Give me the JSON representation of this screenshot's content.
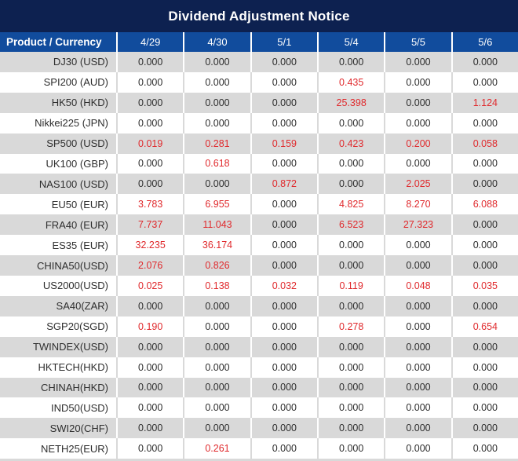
{
  "title": "Dividend Adjustment Notice",
  "table": {
    "product_header": "Product / Currency",
    "date_headers": [
      "4/29",
      "4/30",
      "5/1",
      "5/4",
      "5/5",
      "5/6"
    ],
    "rows": [
      {
        "product": "DJ30 (USD)",
        "values": [
          "0.000",
          "0.000",
          "0.000",
          "0.000",
          "0.000",
          "0.000"
        ]
      },
      {
        "product": "SPI200 (AUD)",
        "values": [
          "0.000",
          "0.000",
          "0.000",
          "0.435",
          "0.000",
          "0.000"
        ]
      },
      {
        "product": "HK50 (HKD)",
        "values": [
          "0.000",
          "0.000",
          "0.000",
          "25.398",
          "0.000",
          "1.124"
        ]
      },
      {
        "product": "Nikkei225 (JPN)",
        "values": [
          "0.000",
          "0.000",
          "0.000",
          "0.000",
          "0.000",
          "0.000"
        ]
      },
      {
        "product": "SP500 (USD)",
        "values": [
          "0.019",
          "0.281",
          "0.159",
          "0.423",
          "0.200",
          "0.058"
        ]
      },
      {
        "product": "UK100 (GBP)",
        "values": [
          "0.000",
          "0.618",
          "0.000",
          "0.000",
          "0.000",
          "0.000"
        ]
      },
      {
        "product": "NAS100 (USD)",
        "values": [
          "0.000",
          "0.000",
          "0.872",
          "0.000",
          "2.025",
          "0.000"
        ]
      },
      {
        "product": "EU50 (EUR)",
        "values": [
          "3.783",
          "6.955",
          "0.000",
          "4.825",
          "8.270",
          "6.088"
        ]
      },
      {
        "product": "FRA40 (EUR)",
        "values": [
          "7.737",
          "11.043",
          "0.000",
          "6.523",
          "27.323",
          "0.000"
        ]
      },
      {
        "product": "ES35 (EUR)",
        "values": [
          "32.235",
          "36.174",
          "0.000",
          "0.000",
          "0.000",
          "0.000"
        ]
      },
      {
        "product": "CHINA50(USD)",
        "values": [
          "2.076",
          "0.826",
          "0.000",
          "0.000",
          "0.000",
          "0.000"
        ]
      },
      {
        "product": "US2000(USD)",
        "values": [
          "0.025",
          "0.138",
          "0.032",
          "0.119",
          "0.048",
          "0.035"
        ]
      },
      {
        "product": "SA40(ZAR)",
        "values": [
          "0.000",
          "0.000",
          "0.000",
          "0.000",
          "0.000",
          "0.000"
        ]
      },
      {
        "product": "SGP20(SGD)",
        "values": [
          "0.190",
          "0.000",
          "0.000",
          "0.278",
          "0.000",
          "0.654"
        ]
      },
      {
        "product": "TWINDEX(USD)",
        "values": [
          "0.000",
          "0.000",
          "0.000",
          "0.000",
          "0.000",
          "0.000"
        ]
      },
      {
        "product": "HKTECH(HKD)",
        "values": [
          "0.000",
          "0.000",
          "0.000",
          "0.000",
          "0.000",
          "0.000"
        ]
      },
      {
        "product": "CHINAH(HKD)",
        "values": [
          "0.000",
          "0.000",
          "0.000",
          "0.000",
          "0.000",
          "0.000"
        ]
      },
      {
        "product": "IND50(USD)",
        "values": [
          "0.000",
          "0.000",
          "0.000",
          "0.000",
          "0.000",
          "0.000"
        ]
      },
      {
        "product": "SWI20(CHF)",
        "values": [
          "0.000",
          "0.000",
          "0.000",
          "0.000",
          "0.000",
          "0.000"
        ]
      },
      {
        "product": "NETH25(EUR)",
        "values": [
          "0.000",
          "0.261",
          "0.000",
          "0.000",
          "0.000",
          "0.000"
        ]
      }
    ]
  },
  "colors": {
    "title_bg": "#0d2150",
    "header_bg": "#114c9d",
    "header_text": "#ffffff",
    "row_stripe_bg": "#d9d9d9",
    "row_plain_bg": "#ffffff",
    "value_text": "#2e2e2e",
    "highlight_value_text": "#e02a2d"
  }
}
